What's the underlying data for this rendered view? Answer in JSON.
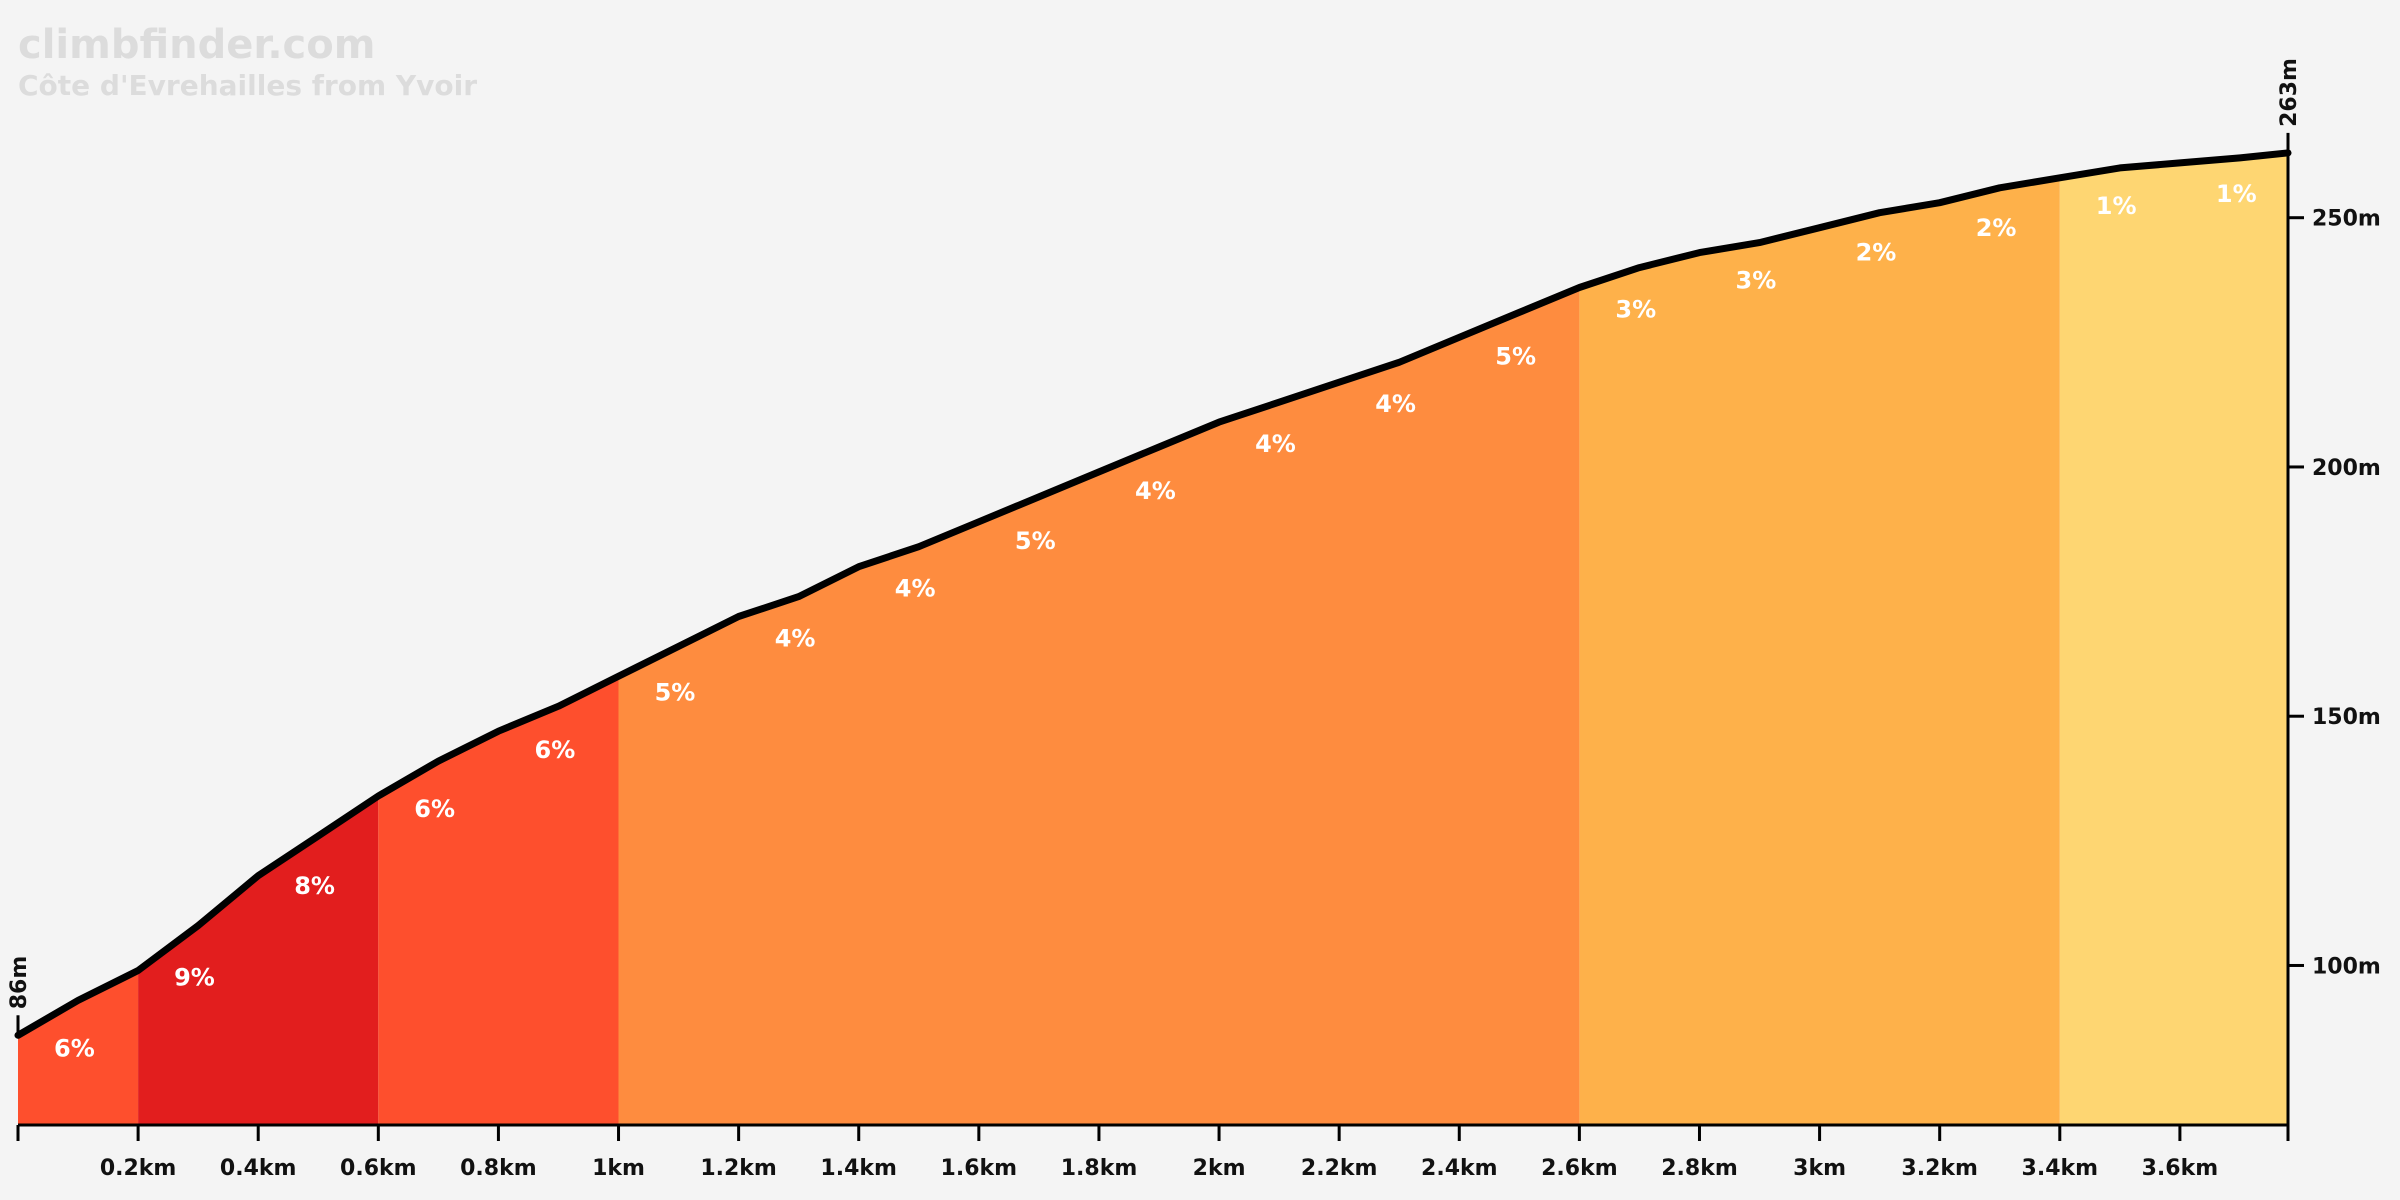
{
  "watermark": {
    "site": "climbfinder.com",
    "climb_name": "Côte d'Evrehailles from Yvoir"
  },
  "chart_data": {
    "type": "area",
    "title": "",
    "xlabel": "",
    "ylabel": "",
    "x_unit": "km",
    "y_unit": "m",
    "xlim": [
      0,
      3.78
    ],
    "ylim": [
      68,
      270
    ],
    "start_elevation_label": "86m",
    "end_elevation_label": "263m",
    "x_ticks": [
      {
        "value": 0.2,
        "label": "0.2km"
      },
      {
        "value": 0.4,
        "label": "0.4km"
      },
      {
        "value": 0.6,
        "label": "0.6km"
      },
      {
        "value": 0.8,
        "label": "0.8km"
      },
      {
        "value": 1.0,
        "label": "1km"
      },
      {
        "value": 1.2,
        "label": "1.2km"
      },
      {
        "value": 1.4,
        "label": "1.4km"
      },
      {
        "value": 1.6,
        "label": "1.6km"
      },
      {
        "value": 1.8,
        "label": "1.8km"
      },
      {
        "value": 2.0,
        "label": "2km"
      },
      {
        "value": 2.2,
        "label": "2.2km"
      },
      {
        "value": 2.4,
        "label": "2.4km"
      },
      {
        "value": 2.6,
        "label": "2.6km"
      },
      {
        "value": 2.8,
        "label": "2.8km"
      },
      {
        "value": 3.0,
        "label": "3km"
      },
      {
        "value": 3.2,
        "label": "3.2km"
      },
      {
        "value": 3.4,
        "label": "3.4km"
      },
      {
        "value": 3.6,
        "label": "3.6km"
      }
    ],
    "y_ticks": [
      {
        "value": 100,
        "label": "100m"
      },
      {
        "value": 150,
        "label": "150m"
      },
      {
        "value": 200,
        "label": "200m"
      },
      {
        "value": 250,
        "label": "250m"
      }
    ],
    "profile": {
      "x": [
        0,
        0.1,
        0.2,
        0.3,
        0.4,
        0.5,
        0.6,
        0.7,
        0.8,
        0.9,
        1.0,
        1.1,
        1.2,
        1.3,
        1.4,
        1.5,
        1.6,
        1.7,
        1.8,
        1.9,
        2.0,
        2.1,
        2.2,
        2.3,
        2.4,
        2.5,
        2.6,
        2.7,
        2.8,
        2.9,
        3.0,
        3.1,
        3.2,
        3.3,
        3.4,
        3.5,
        3.6,
        3.7,
        3.78
      ],
      "y": [
        86,
        93,
        99,
        108,
        118,
        126,
        134,
        141,
        147,
        152,
        158,
        164,
        170,
        174,
        180,
        184,
        189,
        194,
        199,
        204,
        209,
        213,
        217,
        221,
        226,
        231,
        236,
        240,
        243,
        245,
        248,
        251,
        253,
        256,
        258,
        260,
        261,
        262,
        263
      ]
    },
    "segments": [
      {
        "start": 0.0,
        "end": 0.2,
        "grade_label": "6%",
        "color": "#fe4f2d"
      },
      {
        "start": 0.2,
        "end": 0.6,
        "grade_label": "9%",
        "color": "#e21e1e"
      },
      {
        "start": 0.6,
        "end": 1.0,
        "grade_label": "6%",
        "color": "#fe4f2d"
      },
      {
        "start": 1.0,
        "end": 2.6,
        "grade_label": "5%",
        "color": "#fe8c3f"
      },
      {
        "start": 2.6,
        "end": 3.4,
        "grade_label": "3%",
        "color": "#feb14a"
      },
      {
        "start": 3.4,
        "end": 3.78,
        "grade_label": "1%",
        "color": "#fed672"
      }
    ],
    "grade_labels": [
      {
        "x": 0.06,
        "label": "6%"
      },
      {
        "x": 0.26,
        "label": "9%"
      },
      {
        "x": 0.46,
        "label": "8%"
      },
      {
        "x": 0.66,
        "label": "6%"
      },
      {
        "x": 0.86,
        "label": "6%"
      },
      {
        "x": 1.06,
        "label": "5%"
      },
      {
        "x": 1.26,
        "label": "4%"
      },
      {
        "x": 1.46,
        "label": "4%"
      },
      {
        "x": 1.66,
        "label": "5%"
      },
      {
        "x": 1.86,
        "label": "4%"
      },
      {
        "x": 2.06,
        "label": "4%"
      },
      {
        "x": 2.26,
        "label": "4%"
      },
      {
        "x": 2.46,
        "label": "5%"
      },
      {
        "x": 2.66,
        "label": "3%"
      },
      {
        "x": 2.86,
        "label": "3%"
      },
      {
        "x": 3.06,
        "label": "2%"
      },
      {
        "x": 3.26,
        "label": "2%"
      },
      {
        "x": 3.46,
        "label": "1%"
      },
      {
        "x": 3.66,
        "label": "1%"
      }
    ],
    "line_color": "#000000",
    "background_color": "#f4f4f4",
    "grid": false,
    "legend": "none"
  }
}
